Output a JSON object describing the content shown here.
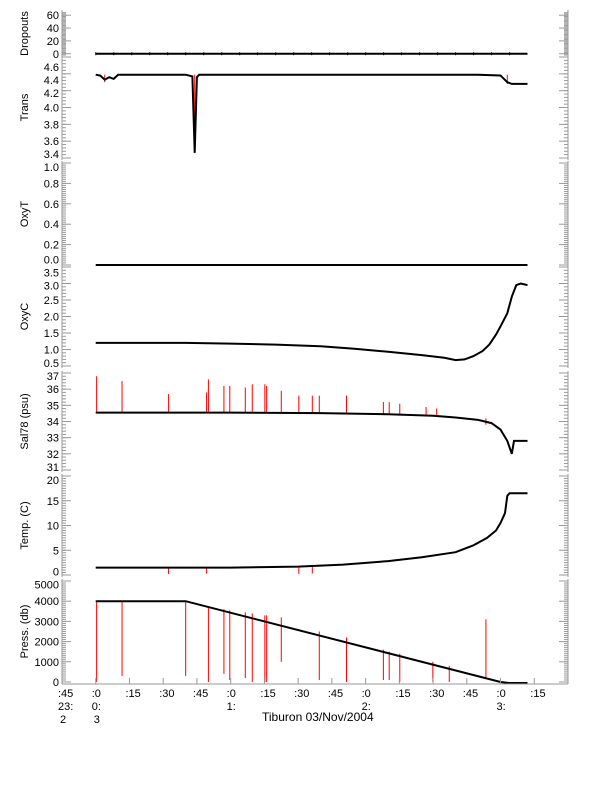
{
  "chart_data": [
    {
      "type": "line",
      "ylabel": "Dropouts",
      "ylim": [
        -2,
        65
      ],
      "ticks": [
        0,
        20,
        40,
        60
      ],
      "tick_labels": [
        "0",
        "20",
        "40",
        "60"
      ],
      "series": [
        {
          "name": "Dropouts",
          "color": "#000000",
          "x": [
            0,
            192
          ],
          "y": [
            0,
            0
          ]
        }
      ],
      "spikes": []
    },
    {
      "type": "line",
      "ylabel": "Trans",
      "ylim": [
        3.4,
        4.6
      ],
      "ticks": [
        3.4,
        3.6,
        3.8,
        4.0,
        4.2,
        4.4,
        4.6
      ],
      "tick_labels": [
        "3.4",
        "3.6",
        "3.8",
        "4.0",
        "4.2",
        "4.4",
        "4.6"
      ],
      "series": [
        {
          "name": "Trans",
          "color": "#000000",
          "x": [
            0,
            2,
            4,
            6,
            8,
            10,
            40,
            43,
            44,
            45,
            46,
            50,
            170,
            180,
            183,
            185,
            192
          ],
          "y": [
            4.39,
            4.38,
            4.33,
            4.36,
            4.34,
            4.39,
            4.39,
            4.37,
            3.46,
            4.36,
            4.39,
            4.39,
            4.39,
            4.38,
            4.3,
            4.28,
            4.28
          ]
        }
      ],
      "spikes": [
        [
          4,
          4.39,
          4.3
        ],
        [
          44,
          4.39,
          3.46
        ],
        [
          183,
          4.39,
          4.28
        ]
      ]
    },
    {
      "type": "line",
      "ylabel": "OxyT",
      "ylim": [
        0,
        1.0
      ],
      "ticks": [
        0,
        0.2,
        0.4,
        0.6,
        0.8,
        1.0
      ],
      "tick_labels": [
        "0.0",
        "0.2",
        "0.4",
        "0.6",
        "0.8",
        "1.0"
      ],
      "series": [
        {
          "name": "OxyT",
          "color": "#000000",
          "x": [
            0,
            192
          ],
          "y": [
            0,
            0
          ]
        }
      ],
      "spikes": []
    },
    {
      "type": "line",
      "ylabel": "OxyC",
      "ylim": [
        0.5,
        3.5
      ],
      "ticks": [
        0.5,
        1.0,
        1.5,
        2.0,
        2.5,
        3.0,
        3.5
      ],
      "tick_labels": [
        "0.5",
        "1.0",
        "1.5",
        "2.0",
        "2.5",
        "3.0",
        "3.5"
      ],
      "series": [
        {
          "name": "OxyC",
          "color": "#000000",
          "x": [
            0,
            40,
            60,
            80,
            100,
            115,
            130,
            145,
            155,
            160,
            164,
            168,
            172,
            175,
            178,
            180,
            183,
            185,
            187,
            189,
            192
          ],
          "y": [
            1.2,
            1.2,
            1.18,
            1.15,
            1.1,
            1.02,
            0.93,
            0.83,
            0.75,
            0.68,
            0.7,
            0.8,
            0.95,
            1.15,
            1.45,
            1.7,
            2.1,
            2.6,
            2.95,
            3.0,
            2.95
          ]
        }
      ],
      "spikes": []
    },
    {
      "type": "line",
      "ylabel": "Sal78 (psu)",
      "ylim": [
        31,
        37
      ],
      "ticks": [
        31,
        32,
        33,
        34,
        35,
        36,
        37
      ],
      "tick_labels": [
        "31",
        "32",
        "33",
        "34",
        "35",
        "36",
        "37"
      ],
      "series": [
        {
          "name": "Sal78",
          "color": "#000000",
          "x": [
            0,
            60,
            100,
            130,
            150,
            160,
            170,
            176,
            180,
            183,
            185,
            186,
            187,
            192
          ],
          "y": [
            34.55,
            34.55,
            34.52,
            34.45,
            34.35,
            34.25,
            34.1,
            33.9,
            33.5,
            32.8,
            32.0,
            32.8,
            32.8,
            32.8
          ]
        }
      ],
      "spikes": [
        [
          0.4,
          34.55,
          36.8
        ],
        [
          11.7,
          34.55,
          36.5
        ],
        [
          32.4,
          34.55,
          35.7
        ],
        [
          49.3,
          34.55,
          35.8
        ],
        [
          50.1,
          34.55,
          36.6
        ],
        [
          57,
          34.55,
          36.2
        ],
        [
          59.6,
          34.55,
          36.2
        ],
        [
          66.5,
          34.55,
          36.1
        ],
        [
          69.6,
          34.55,
          36.3
        ],
        [
          75.2,
          34.55,
          36.3
        ],
        [
          76,
          34.55,
          36.2
        ],
        [
          82.5,
          34.55,
          35.9
        ],
        [
          90.3,
          34.55,
          35.6
        ],
        [
          96.3,
          34.55,
          35.6
        ],
        [
          99.4,
          34.52,
          35.6
        ],
        [
          111.5,
          34.5,
          35.6
        ],
        [
          127.9,
          34.45,
          35.2
        ],
        [
          130.5,
          34.45,
          35.2
        ],
        [
          135.2,
          34.42,
          35.1
        ],
        [
          146.9,
          34.38,
          34.9
        ],
        [
          151.6,
          34.35,
          34.8
        ],
        [
          173.5,
          33.8,
          34.2
        ]
      ]
    },
    {
      "type": "line",
      "ylabel": "Temp. (C)",
      "ylim": [
        0,
        20
      ],
      "ticks": [
        0,
        5,
        10,
        15,
        20
      ],
      "tick_labels": [
        "0",
        "5",
        "10",
        "15",
        "20"
      ],
      "series": [
        {
          "name": "Temp",
          "color": "#000000",
          "x": [
            0,
            60,
            90,
            110,
            130,
            145,
            160,
            168,
            174,
            178,
            180,
            182,
            183,
            184,
            192
          ],
          "y": [
            1.5,
            1.5,
            1.7,
            2.1,
            2.8,
            3.6,
            4.6,
            6,
            7.5,
            9,
            10.5,
            12.5,
            16,
            16.5,
            16.5
          ]
        }
      ],
      "spikes": [
        [
          32.4,
          1.5,
          0.2
        ],
        [
          49.3,
          1.5,
          0.3
        ],
        [
          90.3,
          1.6,
          0.2
        ],
        [
          96.3,
          1.6,
          0.3
        ]
      ]
    },
    {
      "type": "line",
      "ylabel": "Press. (db)",
      "ylim": [
        0,
        5000
      ],
      "ticks": [
        0,
        1000,
        2000,
        3000,
        4000,
        5000
      ],
      "tick_labels": [
        "0",
        "1000",
        "2000",
        "3000",
        "4000",
        "5000"
      ],
      "series": [
        {
          "name": "Press",
          "color": "#000000",
          "x": [
            0,
            40,
            180,
            184,
            192
          ],
          "y": [
            4000,
            4000,
            0,
            -50,
            -50
          ]
        }
      ],
      "spikes": [
        [
          0.4,
          4000,
          0
        ],
        [
          11.7,
          4000,
          300
        ],
        [
          40,
          4000,
          300
        ],
        [
          50.1,
          3700,
          0
        ],
        [
          57,
          3600,
          400
        ],
        [
          59.6,
          3550,
          100
        ],
        [
          66.5,
          3450,
          200
        ],
        [
          69.6,
          3400,
          0
        ],
        [
          75.2,
          3300,
          0
        ],
        [
          76,
          3300,
          0
        ],
        [
          82.5,
          3200,
          1000
        ],
        [
          99.4,
          2500,
          100
        ],
        [
          111.5,
          2200,
          0
        ],
        [
          127.9,
          1600,
          100
        ],
        [
          130.5,
          1500,
          100
        ],
        [
          135.2,
          1400,
          0
        ],
        [
          149.9,
          1000,
          0
        ],
        [
          157.2,
          800,
          0
        ],
        [
          173.5,
          200,
          3100
        ]
      ]
    }
  ],
  "x_axis": {
    "minute_labels": [
      ":45",
      ":0",
      ":15",
      ":30",
      ":45",
      ":0",
      ":15",
      ":30",
      ":45",
      ":0",
      ":15",
      ":30",
      ":45",
      ":0",
      ":15"
    ],
    "minute_values": [
      -15,
      0,
      15,
      30,
      45,
      60,
      75,
      90,
      105,
      120,
      135,
      150,
      165,
      180,
      195
    ],
    "hour_labels": [
      {
        "t": -15,
        "text": "23:"
      },
      {
        "t": 0,
        "text": "0:"
      },
      {
        "t": 60,
        "text": "1:"
      },
      {
        "t": 120,
        "text": "2:"
      },
      {
        "t": 180,
        "text": "3:"
      }
    ],
    "day_labels": [
      {
        "t": -15,
        "text": "2"
      },
      {
        "t": 0,
        "text": "3"
      }
    ],
    "xlim": [
      -15,
      210
    ],
    "title": "Tiburon 03/Nov/2004"
  },
  "colors": {
    "data": "#000000",
    "spike": "#ff0000",
    "axis": "#999999"
  }
}
